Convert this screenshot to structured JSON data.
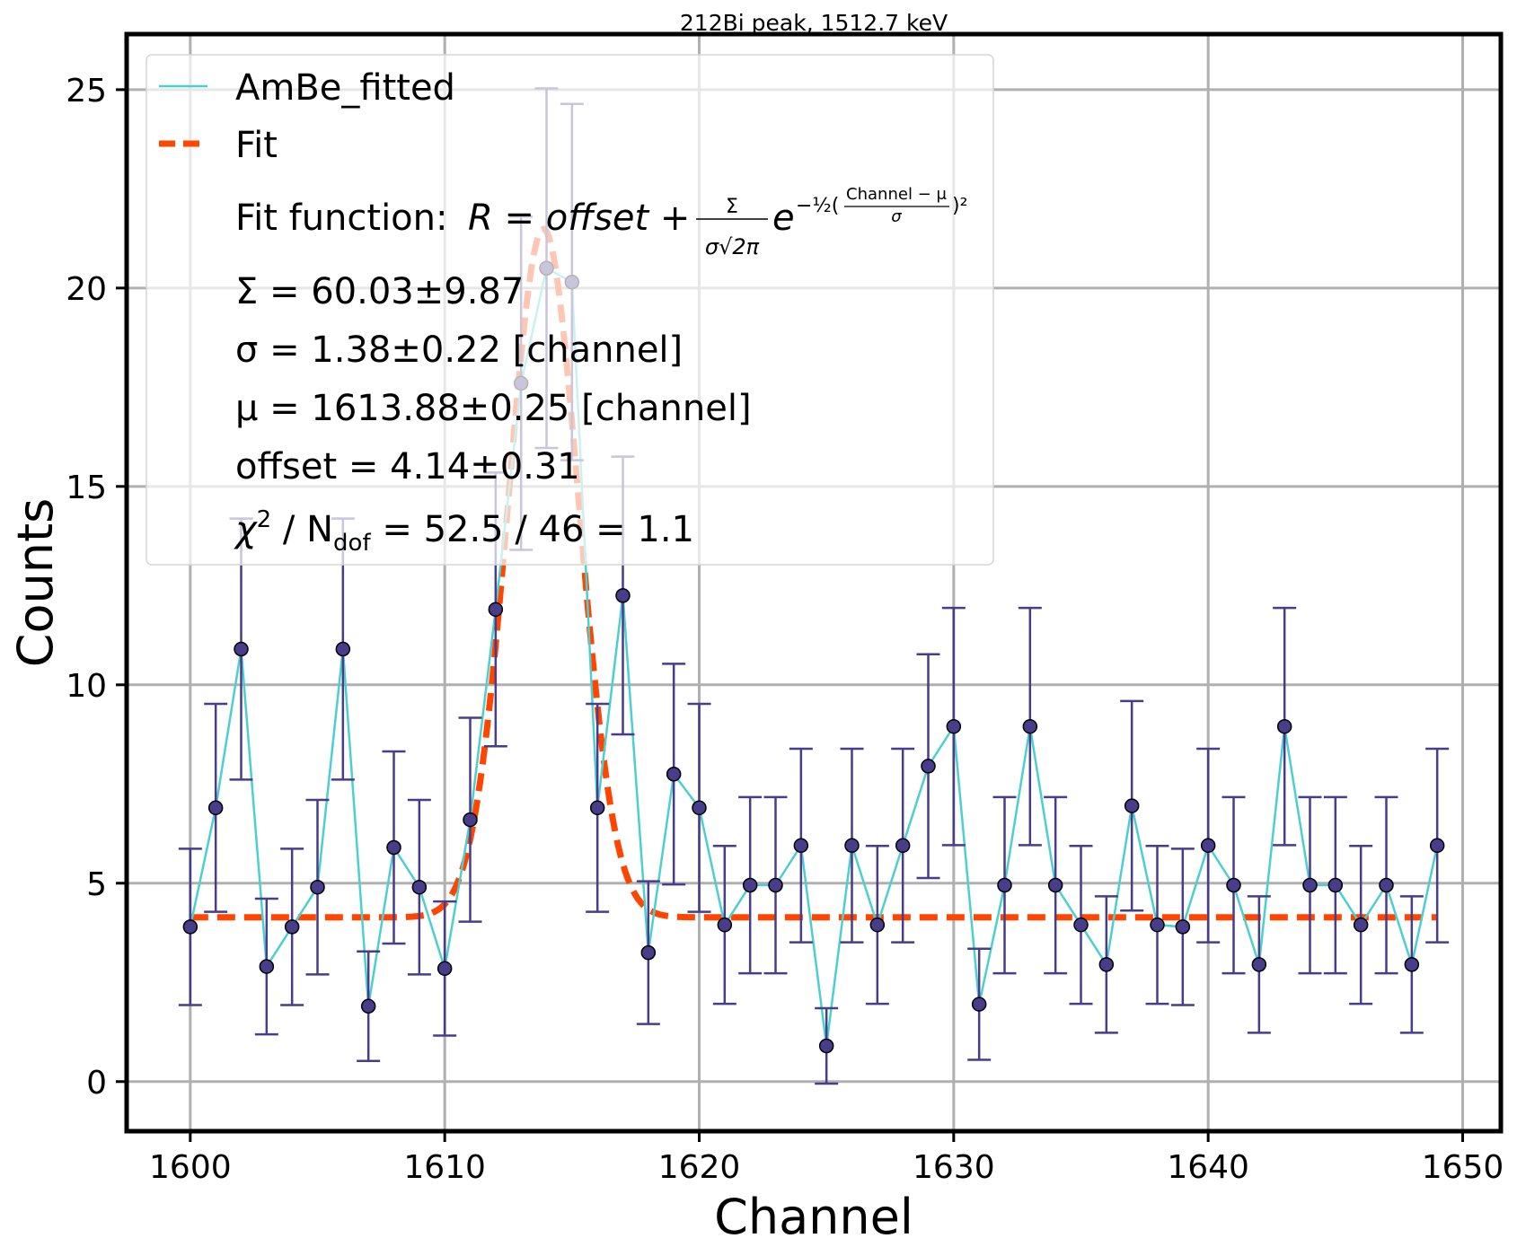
{
  "chart_data": {
    "type": "scatter",
    "title": "212Bi peak, 1512.7 keV",
    "xlabel": "Channel",
    "ylabel": "Counts",
    "xlim": [
      1597.5,
      1651.5
    ],
    "ylim": [
      -1.25,
      26.4
    ],
    "xticks": [
      1600,
      1610,
      1620,
      1630,
      1640,
      1650
    ],
    "yticks": [
      0,
      5,
      10,
      15,
      20,
      25
    ],
    "grid": true,
    "legend_position": "top-left",
    "colors": {
      "data_line": "#4ecfcf",
      "marker_fill": "#483d8b",
      "errorbar": "#483d8b",
      "fit": "#ff4500",
      "grid": "#b0b0b0"
    },
    "series": [
      {
        "name": "AmBe_fitted",
        "x": [
          1600,
          1601,
          1602,
          1603,
          1604,
          1605,
          1606,
          1607,
          1608,
          1609,
          1610,
          1611,
          1612,
          1613,
          1614,
          1615,
          1616,
          1617,
          1618,
          1619,
          1620,
          1621,
          1622,
          1623,
          1624,
          1625,
          1626,
          1627,
          1628,
          1629,
          1630,
          1631,
          1632,
          1633,
          1634,
          1635,
          1636,
          1637,
          1638,
          1639,
          1640,
          1641,
          1642,
          1643,
          1644,
          1645,
          1646,
          1647,
          1648,
          1649
        ],
        "y": [
          3.9,
          6.9,
          10.9,
          2.9,
          3.9,
          4.9,
          10.9,
          1.9,
          5.9,
          4.9,
          2.85,
          6.6,
          11.9,
          17.6,
          20.5,
          20.15,
          6.9,
          12.25,
          3.25,
          7.75,
          6.9,
          3.95,
          4.95,
          4.95,
          5.95,
          0.9,
          5.95,
          3.95,
          5.95,
          7.95,
          8.95,
          1.95,
          4.95,
          8.95,
          4.95,
          3.95,
          2.95,
          6.95,
          3.95,
          3.9,
          5.95,
          4.95,
          2.95,
          8.95,
          4.95,
          4.95,
          3.95,
          4.95,
          2.95,
          5.95
        ],
        "yerr": [
          1.97,
          2.62,
          3.29,
          1.71,
          1.97,
          2.2,
          3.29,
          1.38,
          2.42,
          2.2,
          1.69,
          2.57,
          3.45,
          4.2,
          4.53,
          4.49,
          2.62,
          3.5,
          1.8,
          2.78,
          2.62,
          1.99,
          2.22,
          2.22,
          2.44,
          0.95,
          2.44,
          1.99,
          2.44,
          2.82,
          2.99,
          1.4,
          2.22,
          2.99,
          2.22,
          1.99,
          1.72,
          2.64,
          1.99,
          1.97,
          2.44,
          2.22,
          1.72,
          2.99,
          2.22,
          2.22,
          1.99,
          2.22,
          1.72,
          2.44
        ]
      },
      {
        "name": "Fit",
        "function": "gaussian_plus_offset",
        "Sigma": 60.03,
        "sigma": 1.38,
        "mu": 1613.88,
        "offset": 4.14,
        "x_range": [
          1600,
          1649
        ]
      }
    ],
    "legend": {
      "entries": [
        "AmBe_fitted",
        "Fit"
      ],
      "formula_prefix": "Fit function: ",
      "formula_lhs": "R = offset + ",
      "formula_num": "Σ",
      "formula_den": "σ√2π",
      "formula_e": "e",
      "formula_exp": "−½(",
      "formula_exp_num": "Channel − μ",
      "formula_exp_den": "σ",
      "formula_exp_close": ")²",
      "param_lines": [
        "Σ = 60.03±9.87",
        "σ = 1.38±0.22 [channel]",
        "μ = 1613.88±0.25 [channel]",
        "offset = 4.14±0.31"
      ],
      "chi_prefix": "χ",
      "chi_sup": "2",
      "chi_mid": " / N",
      "chi_sub": "dof",
      "chi_suffix": " = 52.5 / 46 = 1.1"
    }
  }
}
